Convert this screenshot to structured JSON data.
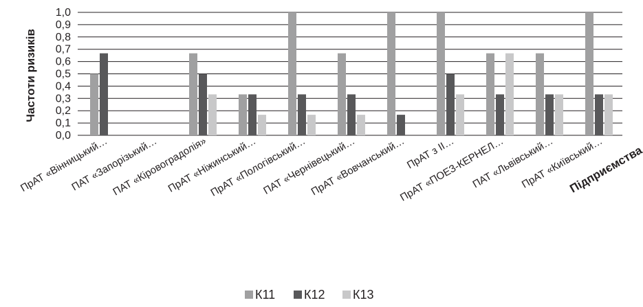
{
  "chart_data": {
    "type": "bar",
    "ylabel": "Частоти ризиків",
    "xlabel": "Підприємства",
    "ylim": [
      0,
      1.0
    ],
    "ytick_step": 0.1,
    "yticks": [
      "0,0",
      "0,1",
      "0,2",
      "0,3",
      "0,4",
      "0,5",
      "0,6",
      "0,7",
      "0,8",
      "0,9",
      "1,0"
    ],
    "grid": true,
    "legend_position": "bottom",
    "categories": [
      "ПрАТ «Вінницький…",
      "ПАТ «Запорізький…",
      "ПАТ «Кіровоградолія»",
      "ПрАТ «Ніжинський…",
      "ПрАТ «Пологівський…",
      "ПАТ «Чернівецький…",
      "ПрАТ «Вовчанський…",
      "ПрАТ з ІІ…",
      "ПрАТ «ПОЕЗ-КЕРНЕЛ…",
      "ПАТ «Львівський…",
      "ПрАТ «Київський…"
    ],
    "series": [
      {
        "name": "К11",
        "color": "#a0a0a1",
        "values": [
          0.5,
          0,
          0.667,
          0.333,
          1.0,
          0.667,
          1.0,
          1.0,
          0.667,
          0.667,
          1.0
        ]
      },
      {
        "name": "К12",
        "color": "#58585a",
        "values": [
          0.667,
          0,
          0.5,
          0.333,
          0.333,
          0.333,
          0.167,
          0.5,
          0.333,
          0.333,
          0.333
        ]
      },
      {
        "name": "К13",
        "color": "#c8c8c9",
        "values": [
          0,
          0,
          0.333,
          0.167,
          0.167,
          0.167,
          0,
          0.333,
          0.667,
          0.333,
          0.333
        ]
      }
    ]
  }
}
